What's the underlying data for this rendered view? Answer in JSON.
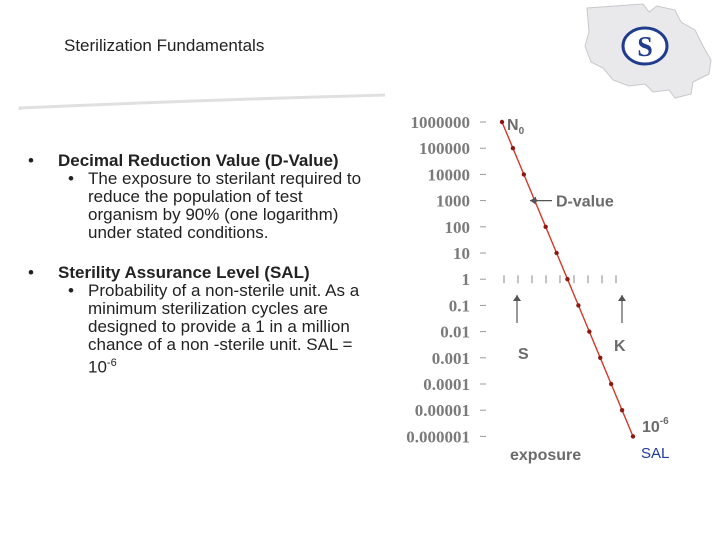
{
  "slide": {
    "title": "Sterilization Fundamentals",
    "bullets": [
      {
        "marker": "•",
        "heading": "Decimal Reduction Value (D-Value)",
        "sub_marker": "•",
        "sub": "The exposure to sterilant required to reduce the population of test organism by 90% (one logarithm) under stated conditions."
      },
      {
        "marker": "•",
        "heading": "Sterility Assurance Level (SAL)",
        "sub_marker": "•",
        "sub": "Probability of a non-sterile unit. As a minimum sterilization cycles are designed to provide a 1 in a million chance of a non -sterile unit. SAL = 10",
        "sub_sup": "-6"
      }
    ],
    "sal_label": "SAL",
    "logo_letter": "S"
  },
  "colors": {
    "line": "#d03a2a",
    "point": "#8a1a12",
    "tick_text": "#7a7a7a",
    "annotation": "#6b6b6b",
    "sal_blue": "#1b3a9a",
    "logo_blue": "#1f3d8c"
  },
  "chart_data": {
    "type": "line",
    "scale": "log",
    "y_tick_labels": [
      "1000000",
      "100000",
      "10000",
      "1000",
      "100",
      "10",
      "1",
      "0.1",
      "0.01",
      "0.001",
      "0.0001",
      "0.00001",
      "0.000001"
    ],
    "series": [
      {
        "points": [
          1000000,
          100000,
          10000,
          1000,
          100,
          10,
          1,
          0.1,
          0.01,
          0.001,
          0.0001,
          1e-05,
          1e-06
        ]
      }
    ],
    "annotations": {
      "n0": "N",
      "n0_sub": "0",
      "d_value": "D-value",
      "s": "S",
      "k": "K",
      "sal": "10",
      "sal_sup": "-6",
      "xlabel": "exposure"
    }
  }
}
